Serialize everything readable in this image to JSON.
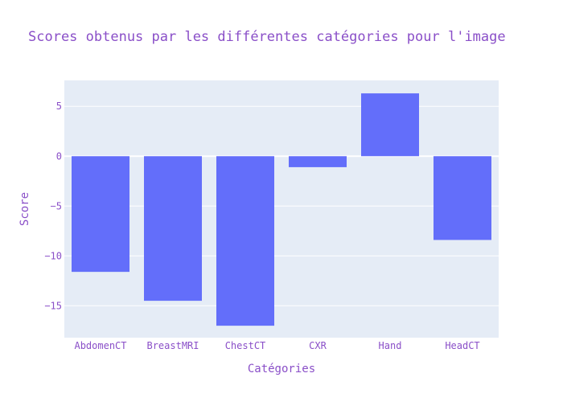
{
  "chart_data": {
    "type": "bar",
    "title": "Scores obtenus par les différentes catégories pour l'image",
    "xlabel": "Catégories",
    "ylabel": "Score",
    "categories": [
      "AbdomenCT",
      "BreastMRI",
      "ChestCT",
      "CXR",
      "Hand",
      "HeadCT"
    ],
    "values": [
      -11.6,
      -14.5,
      -17.0,
      -1.1,
      6.3,
      -8.4
    ],
    "ylim": [
      -18.2,
      7.6
    ],
    "yticks": [
      -15,
      -10,
      -5,
      0,
      5
    ],
    "ytick_labels": [
      "−15",
      "−10",
      "−5",
      "0",
      "5"
    ],
    "grid": true,
    "colors": {
      "bar": "#636efa",
      "plot_background": "#e5ecf6",
      "grid": "#ffffff",
      "text": "#8a4fc8",
      "tick_text": "#8a4fc8"
    }
  }
}
